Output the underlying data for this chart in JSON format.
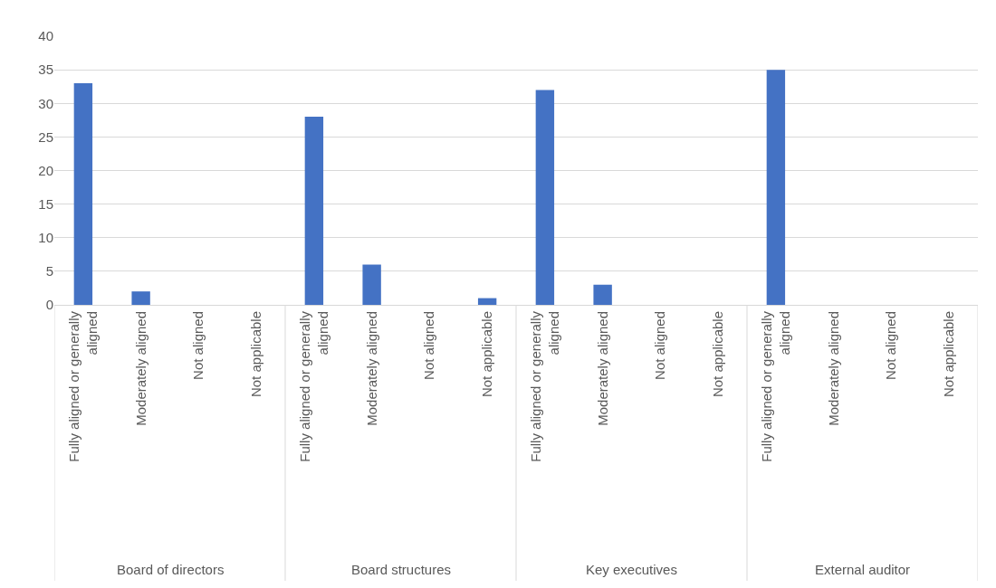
{
  "chart_data": {
    "type": "bar",
    "categories": [
      "Fully aligned or generally aligned",
      "Moderately aligned",
      "Not aligned",
      "Not applicable",
      "Fully aligned or generally aligned",
      "Moderately aligned",
      "Not aligned",
      "Not applicable",
      "Fully aligned or generally aligned",
      "Moderately aligned",
      "Not aligned",
      "Not applicable",
      "Fully aligned or generally aligned",
      "Moderately aligned",
      "Not aligned",
      "Not applicable"
    ],
    "values": [
      33,
      2,
      0,
      0,
      28,
      6,
      0,
      1,
      32,
      3,
      0,
      0,
      35,
      0,
      0,
      0
    ],
    "color": "#4472c4",
    "ylim": [
      0,
      40
    ],
    "yticks": [
      0,
      5,
      10,
      15,
      20,
      25,
      30,
      35,
      40
    ],
    "grid": "y",
    "annotations": [
      "Board of directors",
      "Board structures",
      "Key executives",
      "External auditor"
    ]
  }
}
